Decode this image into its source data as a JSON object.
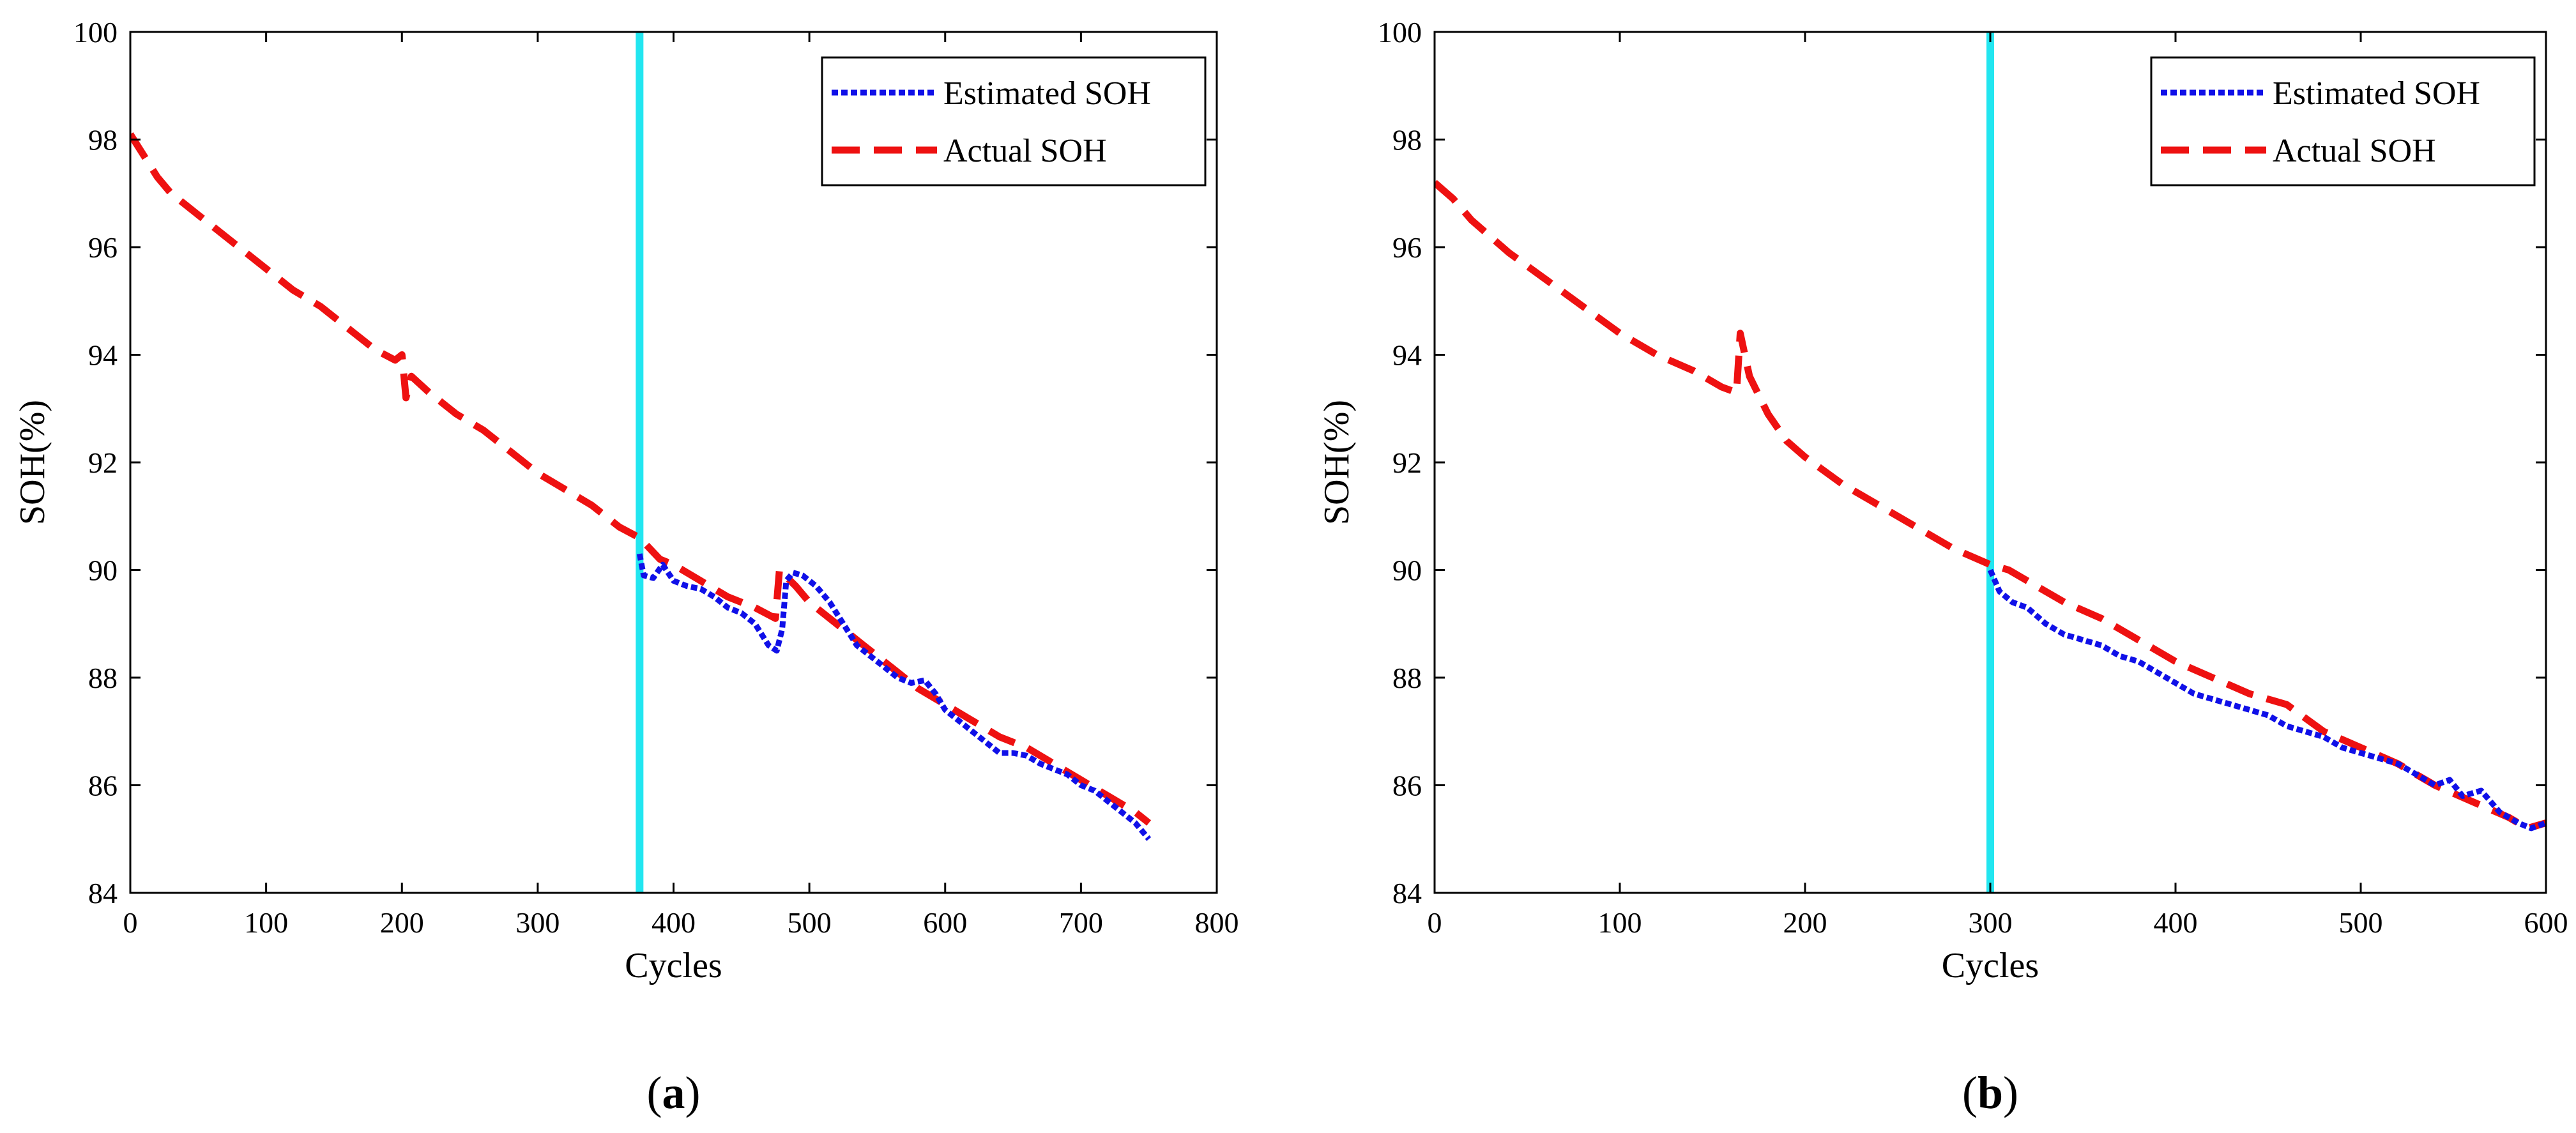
{
  "chart_data": [
    {
      "type": "line",
      "panel_label": "a",
      "xlabel": "Cycles",
      "ylabel": "SOH(%)",
      "xlim": [
        0,
        800
      ],
      "ylim": [
        84,
        100
      ],
      "xticks": [
        0,
        100,
        200,
        300,
        400,
        500,
        600,
        700,
        800
      ],
      "yticks": [
        84,
        86,
        88,
        90,
        92,
        94,
        96,
        98,
        100
      ],
      "grid": false,
      "legend_position": "top-right",
      "prediction_start_cycle": 375,
      "prediction_marker_color": "#22e6f0",
      "series": [
        {
          "name": "Estimated SOH",
          "color": "#1010e8",
          "style": "dotted",
          "points": [
            [
              375,
              90.3
            ],
            [
              378,
              89.9
            ],
            [
              385,
              89.85
            ],
            [
              392,
              90.1
            ],
            [
              400,
              89.8
            ],
            [
              410,
              89.7
            ],
            [
              420,
              89.65
            ],
            [
              430,
              89.5
            ],
            [
              440,
              89.3
            ],
            [
              450,
              89.2
            ],
            [
              460,
              89.0
            ],
            [
              465,
              88.8
            ],
            [
              470,
              88.6
            ],
            [
              476,
              88.5
            ],
            [
              480,
              88.9
            ],
            [
              483,
              89.8
            ],
            [
              488,
              89.95
            ],
            [
              495,
              89.9
            ],
            [
              505,
              89.7
            ],
            [
              515,
              89.4
            ],
            [
              525,
              89.0
            ],
            [
              535,
              88.6
            ],
            [
              545,
              88.4
            ],
            [
              555,
              88.2
            ],
            [
              565,
              88.0
            ],
            [
              575,
              87.9
            ],
            [
              585,
              87.95
            ],
            [
              593,
              87.7
            ],
            [
              600,
              87.4
            ],
            [
              610,
              87.2
            ],
            [
              620,
              87.0
            ],
            [
              630,
              86.8
            ],
            [
              640,
              86.6
            ],
            [
              650,
              86.6
            ],
            [
              660,
              86.55
            ],
            [
              670,
              86.4
            ],
            [
              680,
              86.3
            ],
            [
              690,
              86.2
            ],
            [
              700,
              86.0
            ],
            [
              710,
              85.9
            ],
            [
              720,
              85.7
            ],
            [
              730,
              85.5
            ],
            [
              740,
              85.3
            ],
            [
              750,
              85.0
            ]
          ]
        },
        {
          "name": "Actual SOH",
          "color": "#ee1111",
          "style": "dashed",
          "points": [
            [
              0,
              98.1
            ],
            [
              10,
              97.7
            ],
            [
              20,
              97.3
            ],
            [
              30,
              97.0
            ],
            [
              40,
              96.8
            ],
            [
              50,
              96.6
            ],
            [
              60,
              96.4
            ],
            [
              80,
              96.0
            ],
            [
              100,
              95.6
            ],
            [
              120,
              95.2
            ],
            [
              140,
              94.9
            ],
            [
              160,
              94.5
            ],
            [
              180,
              94.1
            ],
            [
              195,
              93.9
            ],
            [
              200,
              94.0
            ],
            [
              203,
              93.2
            ],
            [
              207,
              93.6
            ],
            [
              220,
              93.3
            ],
            [
              240,
              92.9
            ],
            [
              260,
              92.6
            ],
            [
              280,
              92.2
            ],
            [
              300,
              91.8
            ],
            [
              320,
              91.5
            ],
            [
              340,
              91.2
            ],
            [
              360,
              90.8
            ],
            [
              375,
              90.6
            ],
            [
              390,
              90.2
            ],
            [
              400,
              90.1
            ],
            [
              420,
              89.8
            ],
            [
              440,
              89.5
            ],
            [
              460,
              89.3
            ],
            [
              475,
              89.1
            ],
            [
              478,
              90.0
            ],
            [
              490,
              89.7
            ],
            [
              500,
              89.4
            ],
            [
              520,
              89.0
            ],
            [
              540,
              88.6
            ],
            [
              560,
              88.2
            ],
            [
              580,
              87.8
            ],
            [
              600,
              87.5
            ],
            [
              620,
              87.2
            ],
            [
              640,
              86.9
            ],
            [
              660,
              86.7
            ],
            [
              680,
              86.4
            ],
            [
              700,
              86.1
            ],
            [
              720,
              85.8
            ],
            [
              740,
              85.5
            ],
            [
              750,
              85.3
            ]
          ]
        }
      ]
    },
    {
      "type": "line",
      "panel_label": "b",
      "xlabel": "Cycles",
      "ylabel": "SOH(%)",
      "xlim": [
        0,
        600
      ],
      "ylim": [
        84,
        100
      ],
      "xticks": [
        0,
        100,
        200,
        300,
        400,
        500,
        600
      ],
      "yticks": [
        84,
        86,
        88,
        90,
        92,
        94,
        96,
        98,
        100
      ],
      "grid": false,
      "legend_position": "top-right",
      "prediction_start_cycle": 300,
      "prediction_marker_color": "#22e6f0",
      "series": [
        {
          "name": "Estimated SOH",
          "color": "#1010e8",
          "style": "dotted",
          "points": [
            [
              300,
              90.0
            ],
            [
              305,
              89.6
            ],
            [
              312,
              89.4
            ],
            [
              320,
              89.3
            ],
            [
              330,
              89.0
            ],
            [
              340,
              88.8
            ],
            [
              350,
              88.7
            ],
            [
              360,
              88.6
            ],
            [
              370,
              88.4
            ],
            [
              380,
              88.3
            ],
            [
              390,
              88.1
            ],
            [
              400,
              87.9
            ],
            [
              410,
              87.7
            ],
            [
              420,
              87.6
            ],
            [
              430,
              87.5
            ],
            [
              440,
              87.4
            ],
            [
              450,
              87.3
            ],
            [
              460,
              87.1
            ],
            [
              470,
              87.0
            ],
            [
              480,
              86.9
            ],
            [
              490,
              86.7
            ],
            [
              500,
              86.6
            ],
            [
              510,
              86.5
            ],
            [
              520,
              86.4
            ],
            [
              530,
              86.2
            ],
            [
              540,
              86.0
            ],
            [
              548,
              86.1
            ],
            [
              555,
              85.8
            ],
            [
              565,
              85.9
            ],
            [
              575,
              85.5
            ],
            [
              585,
              85.3
            ],
            [
              592,
              85.2
            ],
            [
              600,
              85.3
            ]
          ]
        },
        {
          "name": "Actual SOH",
          "color": "#ee1111",
          "style": "dashed",
          "points": [
            [
              0,
              97.2
            ],
            [
              10,
              96.9
            ],
            [
              20,
              96.5
            ],
            [
              30,
              96.2
            ],
            [
              40,
              95.9
            ],
            [
              60,
              95.4
            ],
            [
              80,
              94.9
            ],
            [
              100,
              94.4
            ],
            [
              120,
              94.0
            ],
            [
              140,
              93.7
            ],
            [
              155,
              93.4
            ],
            [
              163,
              93.3
            ],
            [
              165,
              94.4
            ],
            [
              170,
              93.6
            ],
            [
              180,
              92.9
            ],
            [
              190,
              92.4
            ],
            [
              200,
              92.1
            ],
            [
              220,
              91.6
            ],
            [
              240,
              91.2
            ],
            [
              260,
              90.8
            ],
            [
              280,
              90.4
            ],
            [
              300,
              90.1
            ],
            [
              310,
              90.0
            ],
            [
              320,
              89.8
            ],
            [
              340,
              89.4
            ],
            [
              360,
              89.1
            ],
            [
              380,
              88.7
            ],
            [
              400,
              88.3
            ],
            [
              420,
              88.0
            ],
            [
              440,
              87.7
            ],
            [
              460,
              87.5
            ],
            [
              480,
              87.0
            ],
            [
              500,
              86.7
            ],
            [
              520,
              86.4
            ],
            [
              540,
              86.0
            ],
            [
              560,
              85.7
            ],
            [
              580,
              85.4
            ],
            [
              590,
              85.2
            ],
            [
              600,
              85.3
            ]
          ]
        }
      ]
    }
  ]
}
